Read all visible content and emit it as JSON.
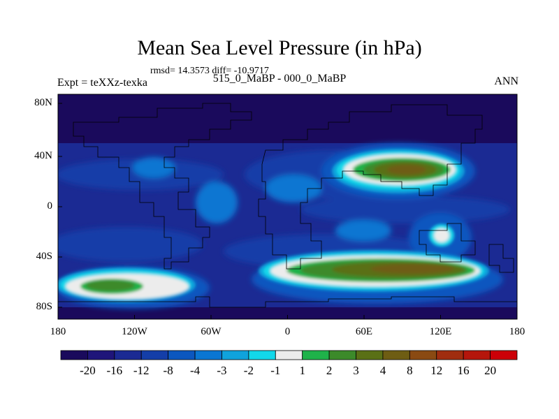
{
  "title": "Mean Sea Level Pressure (in hPa)",
  "stats": "rmsd= 14.3573 diff= -10.9717",
  "left_label": "Expt = teXXz-texka",
  "center_label": "515_0_MaBP - 000_0_MaBP",
  "right_label": "ANN",
  "axes": {
    "x_ticks": [
      "180",
      "120W",
      "60W",
      "0",
      "60E",
      "120E",
      "180"
    ],
    "y_ticks": [
      "80N",
      "40N",
      "0",
      "40S",
      "80S"
    ]
  },
  "colorbar": {
    "labels": [
      "-20",
      "-16",
      "-12",
      "-8",
      "-4",
      "-3",
      "-2",
      "-1",
      "1",
      "2",
      "3",
      "4",
      "8",
      "12",
      "16",
      "20"
    ],
    "colors": [
      "#1a0a5c",
      "#1f157a",
      "#1b2a93",
      "#143ea8",
      "#0c57bf",
      "#0a76d2",
      "#10a3dc",
      "#12d8ea",
      "#ececec",
      "#1fb24a",
      "#3c8a2a",
      "#5a7016",
      "#6e5d13",
      "#8a4a12",
      "#a02d0f",
      "#b5160c",
      "#cc0008"
    ]
  },
  "colors": {
    "background_sea": "#1b2a93",
    "polar": "#1a0a5c",
    "land_outline": "#000000"
  }
}
